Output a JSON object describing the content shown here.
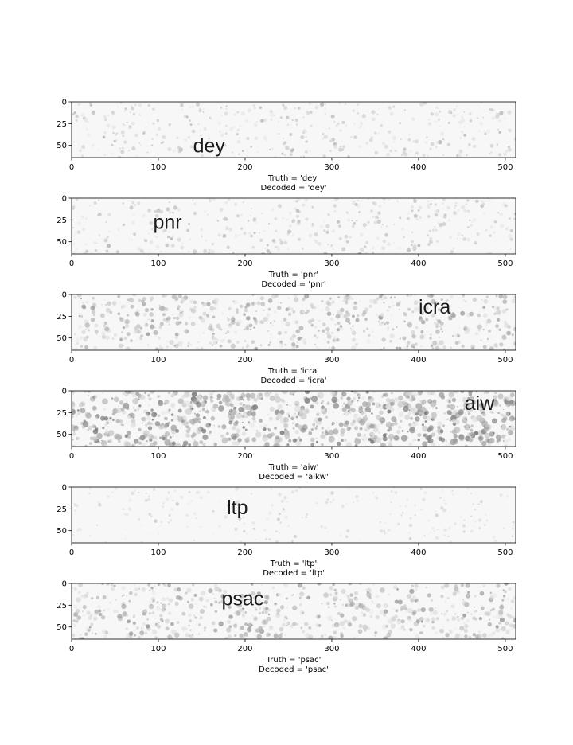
{
  "chart_data": [
    {
      "type": "image",
      "xlim": [
        0,
        512
      ],
      "ylim": [
        64,
        0
      ],
      "xticks": [
        0,
        100,
        200,
        300,
        400,
        500
      ],
      "yticks": [
        0,
        25,
        50
      ],
      "word": "dey",
      "word_x": 140,
      "word_y": 58,
      "noise": 0.3,
      "truth": "Truth = 'dey'",
      "decoded": "Decoded = 'dey'"
    },
    {
      "type": "image",
      "xlim": [
        0,
        512
      ],
      "ylim": [
        64,
        0
      ],
      "xticks": [
        0,
        100,
        200,
        300,
        400,
        500
      ],
      "yticks": [
        0,
        25,
        50
      ],
      "word": "pnr",
      "word_x": 94,
      "word_y": 35,
      "noise": 0.3,
      "truth": "Truth = 'pnr'",
      "decoded": "Decoded = 'pnr'"
    },
    {
      "type": "image",
      "xlim": [
        0,
        512
      ],
      "ylim": [
        64,
        0
      ],
      "xticks": [
        0,
        100,
        200,
        300,
        400,
        500
      ],
      "yticks": [
        0,
        25,
        50
      ],
      "word": "icra",
      "word_x": 400,
      "word_y": 22,
      "noise": 0.55,
      "truth": "Truth = 'icra'",
      "decoded": "Decoded = 'icra'"
    },
    {
      "type": "image",
      "xlim": [
        0,
        512
      ],
      "ylim": [
        64,
        0
      ],
      "xticks": [
        0,
        100,
        200,
        300,
        400,
        500
      ],
      "yticks": [
        0,
        25,
        50
      ],
      "word": "aiw",
      "word_x": 453,
      "word_y": 22,
      "noise": 0.95,
      "truth": "Truth = 'aiw'",
      "decoded": "Decoded = 'aikw'"
    },
    {
      "type": "image",
      "xlim": [
        0,
        512
      ],
      "ylim": [
        64,
        0
      ],
      "xticks": [
        0,
        100,
        200,
        300,
        400,
        500
      ],
      "yticks": [
        0,
        25,
        50
      ],
      "word": "ltp",
      "word_x": 179,
      "word_y": 31,
      "noise": 0.12,
      "truth": "Truth = 'ltp'",
      "decoded": "Decoded = 'ltp'"
    },
    {
      "type": "image",
      "xlim": [
        0,
        512
      ],
      "ylim": [
        64,
        0
      ],
      "xticks": [
        0,
        100,
        200,
        300,
        400,
        500
      ],
      "yticks": [
        0,
        25,
        50
      ],
      "word": "psac",
      "word_x": 173,
      "word_y": 25,
      "noise": 0.6,
      "truth": "Truth = 'psac'",
      "decoded": "Decoded = 'psac'"
    }
  ]
}
